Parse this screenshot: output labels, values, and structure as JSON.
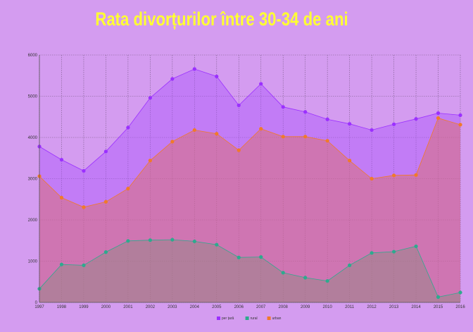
{
  "chart_data": {
    "type": "area",
    "title": "Rata divorțurilor între 30-34  de ani",
    "xlabel": "",
    "ylabel": "",
    "x": [
      "1997",
      "1998",
      "1999",
      "2000",
      "2001",
      "2002",
      "2003",
      "2004",
      "2005",
      "2006",
      "2007",
      "2008",
      "2009",
      "2010",
      "2011",
      "2012",
      "2013",
      "2014",
      "2015",
      "2016"
    ],
    "ylim": [
      0,
      6000
    ],
    "yticks": [
      "0",
      "1000",
      "2000",
      "3000",
      "4000",
      "5000",
      "6000"
    ],
    "grid": true,
    "legend_position": "bottom",
    "series": [
      {
        "name": "per țară",
        "color": "#9b30ff",
        "values": [
          3780,
          3460,
          3190,
          3660,
          4240,
          4960,
          5420,
          5660,
          5480,
          4780,
          5300,
          4740,
          4620,
          4440,
          4330,
          4180,
          4320,
          4450,
          4590,
          4540
        ]
      },
      {
        "name": "rural",
        "color": "#2eaa8e",
        "values": [
          330,
          920,
          900,
          1220,
          1490,
          1510,
          1520,
          1480,
          1400,
          1090,
          1100,
          720,
          600,
          520,
          900,
          1200,
          1230,
          1360,
          130,
          240
        ]
      },
      {
        "name": "urban",
        "color": "#f07a2a",
        "values": [
          3060,
          2540,
          2310,
          2440,
          2760,
          3440,
          3900,
          4180,
          4090,
          3690,
          4210,
          4020,
          4020,
          3920,
          3440,
          3000,
          3080,
          3090,
          4470,
          4310
        ]
      }
    ]
  }
}
